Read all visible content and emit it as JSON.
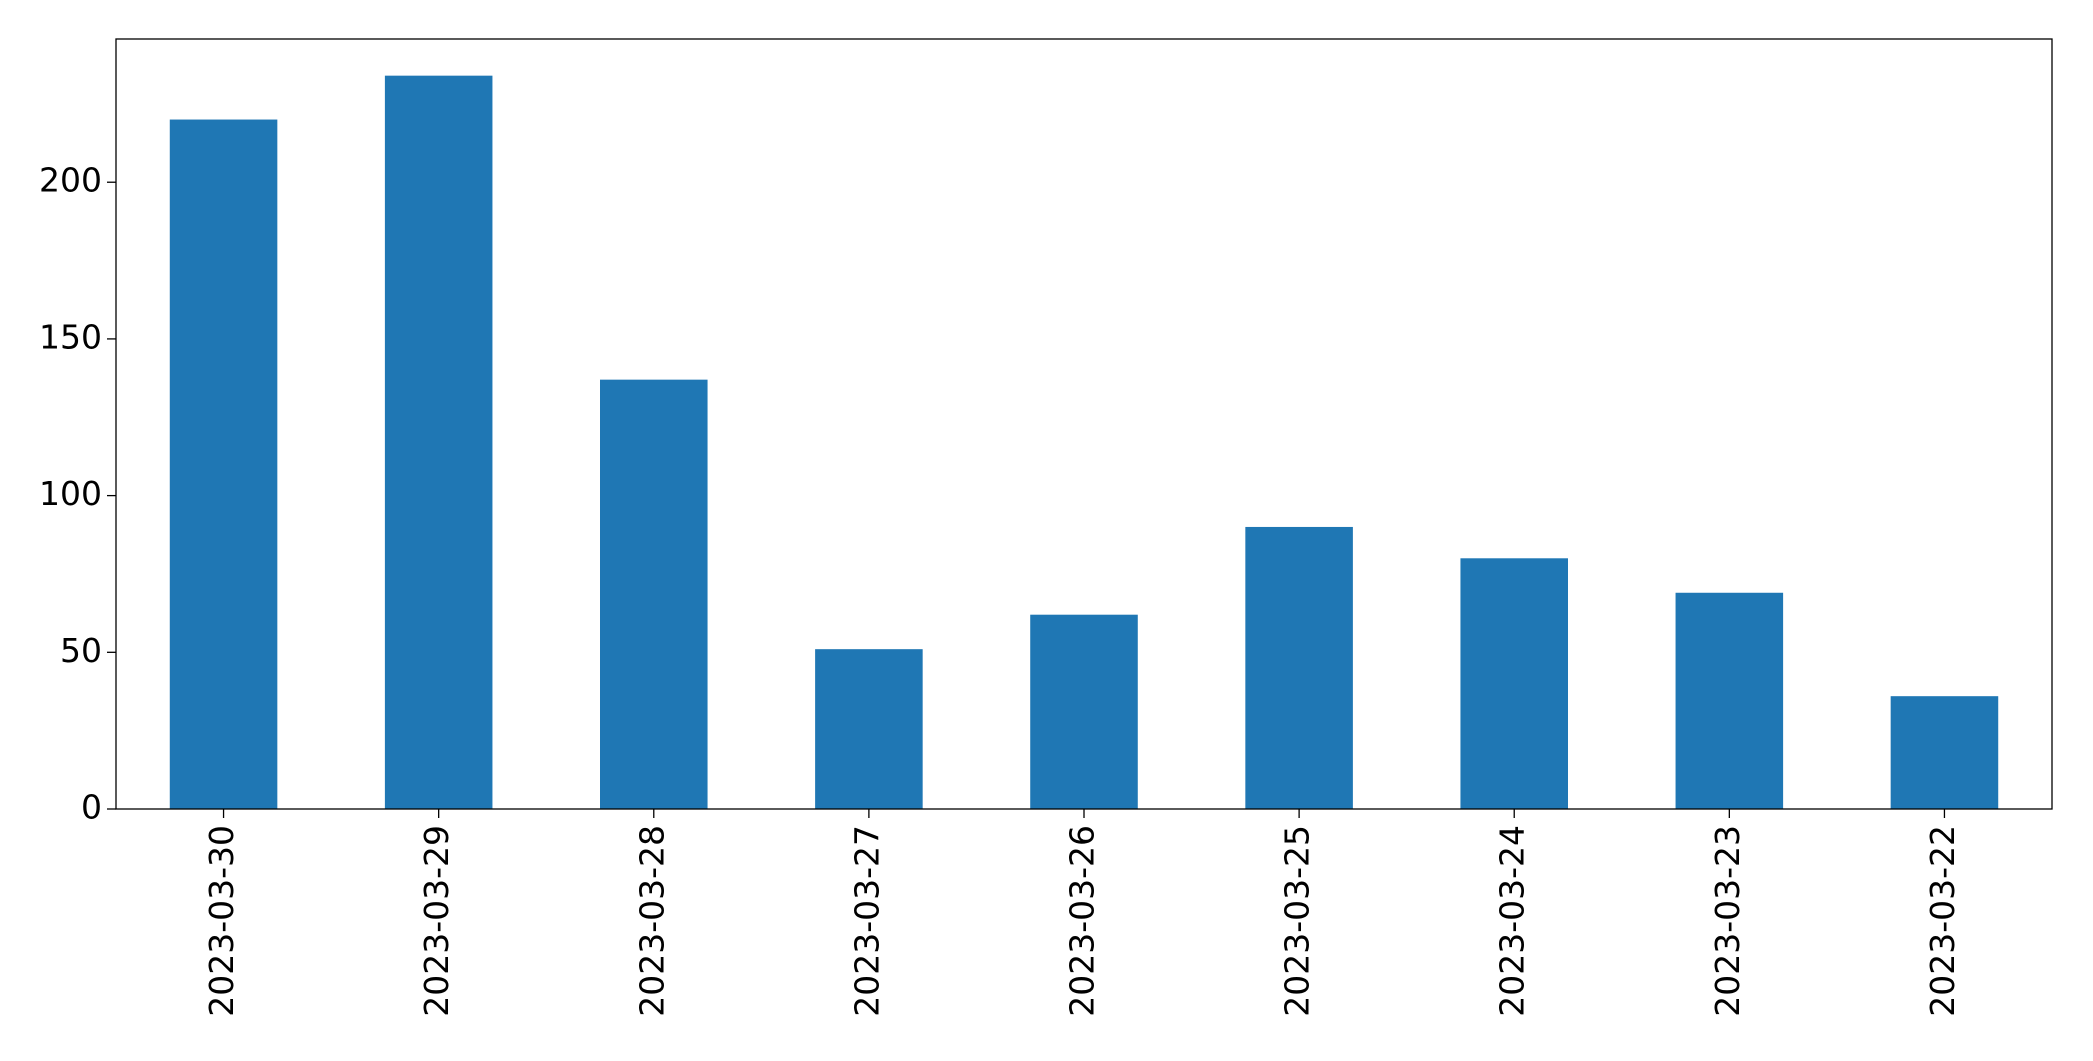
{
  "chart_data": {
    "type": "bar",
    "categories": [
      "2023-03-30",
      "2023-03-29",
      "2023-03-28",
      "2023-03-27",
      "2023-03-26",
      "2023-03-25",
      "2023-03-24",
      "2023-03-23",
      "2023-03-22"
    ],
    "values": [
      220,
      234,
      137,
      51,
      62,
      90,
      80,
      69,
      36
    ],
    "color": "#1f77b4",
    "ylim": [
      0,
      245.7
    ],
    "yticks": [
      0,
      50,
      100,
      150,
      200
    ],
    "grid": false
  }
}
